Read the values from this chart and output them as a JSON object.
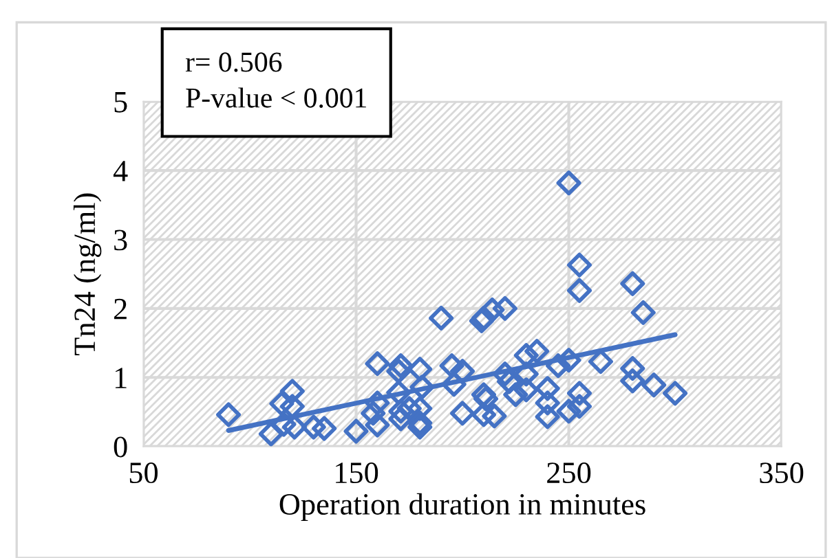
{
  "chart_data": {
    "type": "scatter",
    "xlabel": "Operation duration in minutes",
    "ylabel": "Tn24 (ng/ml)",
    "annotations": [
      "r= 0.506",
      "P-value < 0.001"
    ],
    "xlim": [
      50,
      350
    ],
    "xticks": [
      50,
      150,
      250,
      350
    ],
    "ylim": [
      0,
      5
    ],
    "yticks": [
      0,
      1,
      2,
      3,
      4,
      5
    ],
    "grid": true,
    "legend": false,
    "marker": "diamond",
    "series": [
      {
        "color": "#4472c4",
        "x": [
          90,
          110,
          115,
          120,
          120,
          116,
          121,
          130,
          135,
          150,
          160,
          160,
          160,
          158,
          170,
          170,
          171,
          171,
          171,
          175,
          180,
          180,
          180,
          180,
          181,
          190,
          195,
          196,
          200,
          200,
          209,
          210,
          214,
          220,
          210,
          211,
          210,
          215,
          220,
          222,
          225,
          230,
          235,
          230,
          230,
          240,
          240,
          240,
          245,
          250,
          250,
          250,
          255,
          255,
          255,
          255,
          265,
          280,
          280,
          280,
          285,
          290,
          300
        ],
        "values": [
          0.46,
          0.18,
          0.62,
          0.8,
          0.58,
          0.32,
          0.28,
          0.28,
          0.26,
          0.22,
          1.2,
          0.63,
          0.31,
          0.48,
          0.78,
          1.09,
          1.17,
          0.51,
          0.4,
          0.55,
          1.12,
          0.55,
          0.34,
          0.28,
          0.86,
          1.86,
          1.17,
          0.9,
          1.09,
          0.48,
          1.82,
          1.86,
          1.98,
          2.0,
          0.75,
          0.69,
          0.46,
          0.44,
          1.05,
          0.94,
          0.75,
          1.32,
          1.38,
          1.05,
          0.82,
          0.84,
          0.63,
          0.43,
          1.17,
          3.82,
          1.25,
          0.51,
          2.63,
          2.26,
          0.77,
          0.58,
          1.23,
          2.36,
          1.13,
          0.95,
          1.94,
          0.89,
          0.77
        ]
      },
      {
        "type": "line",
        "marker": "none",
        "color": "#4472c4",
        "x": [
          90,
          300
        ],
        "values": [
          0.23,
          1.62
        ]
      }
    ]
  }
}
